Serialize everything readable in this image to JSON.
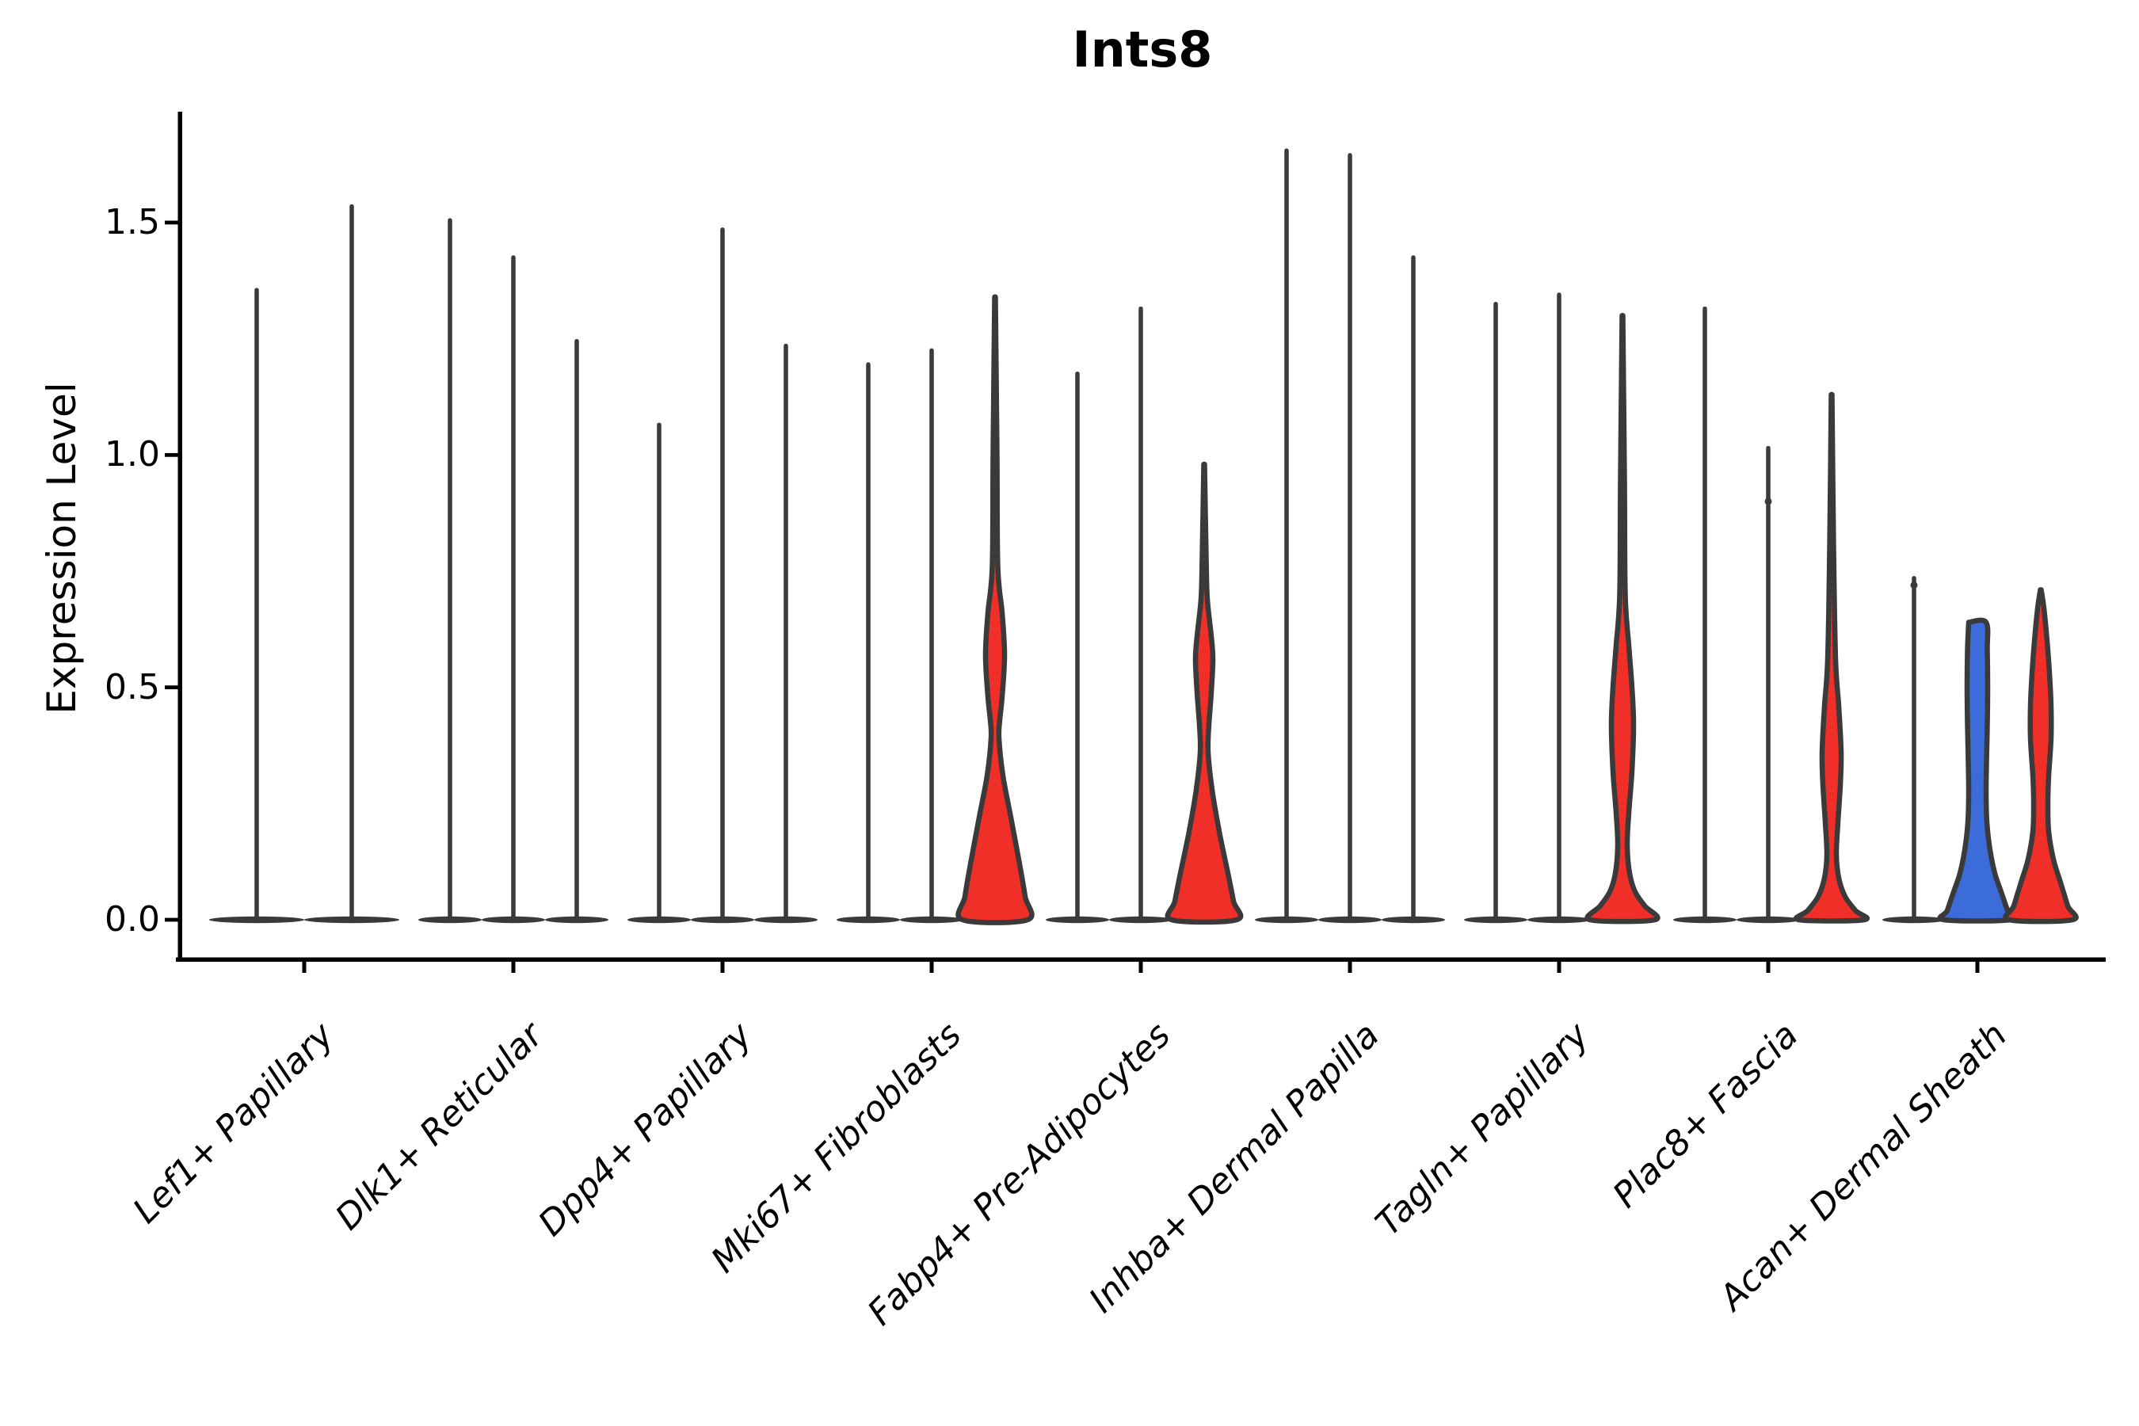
{
  "figure": {
    "background": "#ffffff"
  },
  "chart_data": {
    "type": "violin",
    "title": "Ints8",
    "ylabel": "Expression Level",
    "xlabel": "",
    "grid": false,
    "legend": "none",
    "ytick_labels": [
      "0.0",
      "0.5",
      "1.0",
      "1.5"
    ],
    "yticks": [
      0.0,
      0.5,
      1.0,
      1.5
    ],
    "ylim": [
      -0.09,
      1.74
    ],
    "colors": {
      "red": "#F03028",
      "blue": "#3B6CD9",
      "edge": "#3A3A3A",
      "axis": "#000000"
    },
    "categories": [
      "Lef1+ Papillary",
      "Dlk1+ Reticular",
      "Dpp4+ Papillary",
      "Mki67+ Fibroblasts",
      "Fabp4+ Pre-Adipocytes",
      "Inhba+ Dermal Papilla",
      "Tagln+ Papillary",
      "Plac8+ Fascia",
      "Acan+ Dermal Sheath"
    ],
    "groups": [
      {
        "category": "Lef1+ Papillary",
        "violins": [
          {
            "max": 1.36,
            "fill": "white"
          },
          {
            "max": 1.54,
            "fill": "white"
          }
        ]
      },
      {
        "category": "Dlk1+ Reticular",
        "violins": [
          {
            "max": 1.51,
            "fill": "white"
          },
          {
            "max": 1.43,
            "fill": "white"
          },
          {
            "max": 1.25,
            "fill": "white"
          }
        ]
      },
      {
        "category": "Dpp4+ Papillary",
        "violins": [
          {
            "max": 1.07,
            "fill": "white"
          },
          {
            "max": 1.49,
            "fill": "white"
          },
          {
            "max": 1.24,
            "fill": "white"
          }
        ]
      },
      {
        "category": "Mki67+ Fibroblasts",
        "violins": [
          {
            "max": 1.2,
            "fill": "white"
          },
          {
            "max": 1.23,
            "fill": "white"
          },
          {
            "max": 1.34,
            "fill": "red",
            "profile": [
              [
                1.34,
                0.5
              ],
              [
                1.0,
                2.5
              ],
              [
                0.76,
                3.5
              ],
              [
                0.66,
                9
              ],
              [
                0.57,
                12
              ],
              [
                0.48,
                9
              ],
              [
                0.43,
                6
              ],
              [
                0.39,
                5
              ],
              [
                0.31,
                10
              ],
              [
                0.22,
                20
              ],
              [
                0.12,
                31
              ],
              [
                0.05,
                38
              ],
              [
                0.0,
                41
              ]
            ]
          }
        ]
      },
      {
        "category": "Fabp4+ Pre-Adipocytes",
        "violins": [
          {
            "max": 1.18,
            "fill": "white"
          },
          {
            "max": 1.32,
            "fill": "white"
          },
          {
            "max": 0.98,
            "fill": "red",
            "profile": [
              [
                0.98,
                0.5
              ],
              [
                0.78,
                2.5
              ],
              [
                0.69,
                4
              ],
              [
                0.61,
                9
              ],
              [
                0.56,
                11
              ],
              [
                0.49,
                9
              ],
              [
                0.42,
                6
              ],
              [
                0.36,
                5
              ],
              [
                0.28,
                10
              ],
              [
                0.19,
                19
              ],
              [
                0.1,
                30
              ],
              [
                0.04,
                37
              ],
              [
                0.0,
                41
              ]
            ]
          }
        ]
      },
      {
        "category": "Inhba+ Dermal Papilla",
        "violins": [
          {
            "max": 1.66,
            "fill": "white"
          },
          {
            "max": 1.65,
            "fill": "white"
          },
          {
            "max": 1.43,
            "fill": "white"
          }
        ]
      },
      {
        "category": "Tagln+ Papillary",
        "violins": [
          {
            "max": 1.33,
            "fill": "white"
          },
          {
            "max": 1.35,
            "fill": "white"
          },
          {
            "max": 1.3,
            "fill": "red",
            "profile": [
              [
                1.3,
                0.5
              ],
              [
                0.95,
                2.5
              ],
              [
                0.7,
                3.5
              ],
              [
                0.59,
                8
              ],
              [
                0.5,
                12
              ],
              [
                0.42,
                14
              ],
              [
                0.32,
                12
              ],
              [
                0.23,
                8
              ],
              [
                0.16,
                6
              ],
              [
                0.1,
                9
              ],
              [
                0.06,
                16
              ],
              [
                0.03,
                28
              ],
              [
                0.0,
                41
              ]
            ]
          }
        ]
      },
      {
        "category": "Plac8+ Fascia",
        "violins": [
          {
            "max": 1.32,
            "fill": "white"
          },
          {
            "max": 1.02,
            "fill": "white",
            "dots": [
              0.9
            ]
          },
          {
            "max": 1.13,
            "fill": "red",
            "profile": [
              [
                1.13,
                0.5
              ],
              [
                0.8,
                2.5
              ],
              [
                0.56,
                5
              ],
              [
                0.46,
                9
              ],
              [
                0.36,
                12
              ],
              [
                0.29,
                11
              ],
              [
                0.21,
                8
              ],
              [
                0.14,
                6
              ],
              [
                0.09,
                9
              ],
              [
                0.05,
                17
              ],
              [
                0.02,
                30
              ],
              [
                0.0,
                41
              ]
            ]
          }
        ]
      },
      {
        "category": "Acan+ Dermal Sheath",
        "violins": [
          {
            "max": 0.74,
            "fill": "white",
            "dots": [
              0.72
            ]
          },
          {
            "max": 0.64,
            "fill": "blue",
            "cap": true,
            "profile": [
              [
                0.64,
                11
              ],
              [
                0.58,
                12.5
              ],
              [
                0.5,
                13
              ],
              [
                0.42,
                12.5
              ],
              [
                0.34,
                11.5
              ],
              [
                0.27,
                11
              ],
              [
                0.21,
                12
              ],
              [
                0.15,
                16
              ],
              [
                0.1,
                22
              ],
              [
                0.06,
                30
              ],
              [
                0.02,
                38
              ],
              [
                0.0,
                42
              ]
            ]
          },
          {
            "max": 0.71,
            "fill": "red",
            "profile": [
              [
                0.71,
                0.5
              ],
              [
                0.67,
                4
              ],
              [
                0.6,
                8
              ],
              [
                0.53,
                11
              ],
              [
                0.46,
                13
              ],
              [
                0.39,
                13
              ],
              [
                0.31,
                10
              ],
              [
                0.25,
                9
              ],
              [
                0.19,
                10
              ],
              [
                0.13,
                16
              ],
              [
                0.08,
                25
              ],
              [
                0.03,
                34
              ],
              [
                0.0,
                40
              ]
            ]
          }
        ]
      }
    ]
  }
}
